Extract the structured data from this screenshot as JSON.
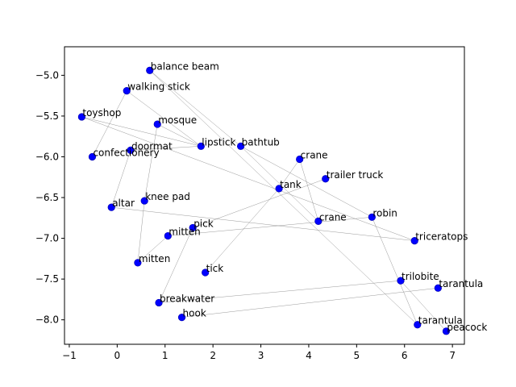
{
  "chart_data": {
    "type": "scatter",
    "title": "",
    "xlabel": "",
    "ylabel": "",
    "xlim": [
      -1.1,
      7.25
    ],
    "ylim": [
      -8.3,
      -4.65
    ],
    "xticks": [
      -1,
      0,
      1,
      2,
      3,
      4,
      5,
      6,
      7
    ],
    "yticks": [
      -8.0,
      -7.5,
      -7.0,
      -6.5,
      -6.0,
      -5.5,
      -5.0
    ],
    "xtick_labels": [
      "−1",
      "0",
      "1",
      "2",
      "3",
      "4",
      "5",
      "6",
      "7"
    ],
    "ytick_labels": [
      "−8.0",
      "−7.5",
      "−7.0",
      "−6.5",
      "−6.0",
      "−5.5",
      "−5.0"
    ],
    "point_color": "#0000ff",
    "edge_color": "#808080",
    "points": [
      {
        "label": "balance beam",
        "x": 0.68,
        "y": -4.94
      },
      {
        "label": "walking stick",
        "x": 0.2,
        "y": -5.19
      },
      {
        "label": "toyshop",
        "x": -0.74,
        "y": -5.51
      },
      {
        "label": "mosque",
        "x": 0.84,
        "y": -5.6
      },
      {
        "label": "doormat",
        "x": 0.28,
        "y": -5.92
      },
      {
        "label": "confectionery",
        "x": -0.52,
        "y": -6.0
      },
      {
        "label": "lipstick",
        "x": 1.75,
        "y": -5.87
      },
      {
        "label": "bathtub",
        "x": 2.58,
        "y": -5.87
      },
      {
        "label": "crane",
        "x": 3.81,
        "y": -6.03
      },
      {
        "label": "trailer truck",
        "x": 4.35,
        "y": -6.27
      },
      {
        "label": "tank",
        "x": 3.38,
        "y": -6.39
      },
      {
        "label": "knee pad",
        "x": 0.57,
        "y": -6.54
      },
      {
        "label": "altar",
        "x": -0.12,
        "y": -6.62
      },
      {
        "label": "crane",
        "x": 4.2,
        "y": -6.79
      },
      {
        "label": "robin",
        "x": 5.32,
        "y": -6.74
      },
      {
        "label": "triceratops",
        "x": 6.21,
        "y": -7.03
      },
      {
        "label": "pick",
        "x": 1.58,
        "y": -6.87
      },
      {
        "label": "mitten",
        "x": 1.06,
        "y": -6.97
      },
      {
        "label": "mitten",
        "x": 0.43,
        "y": -7.3
      },
      {
        "label": "tick",
        "x": 1.84,
        "y": -7.42
      },
      {
        "label": "trilobite",
        "x": 5.92,
        "y": -7.52
      },
      {
        "label": "tarantula",
        "x": 6.7,
        "y": -7.61
      },
      {
        "label": "breakwater",
        "x": 0.87,
        "y": -7.79
      },
      {
        "label": "hook",
        "x": 1.35,
        "y": -7.97
      },
      {
        "label": "tarantula",
        "x": 6.27,
        "y": -8.06
      },
      {
        "label": "peacock",
        "x": 6.87,
        "y": -8.14
      }
    ],
    "edges": [
      [
        0,
        7
      ],
      [
        0,
        24
      ],
      [
        1,
        5
      ],
      [
        1,
        6
      ],
      [
        2,
        6
      ],
      [
        2,
        15
      ],
      [
        3,
        11
      ],
      [
        3,
        6
      ],
      [
        4,
        12
      ],
      [
        4,
        6
      ],
      [
        7,
        14
      ],
      [
        7,
        13
      ],
      [
        8,
        10
      ],
      [
        8,
        13
      ],
      [
        9,
        16
      ],
      [
        10,
        19
      ],
      [
        11,
        18
      ],
      [
        12,
        15
      ],
      [
        14,
        17
      ],
      [
        14,
        24
      ],
      [
        16,
        22
      ],
      [
        20,
        25
      ],
      [
        20,
        22
      ],
      [
        21,
        23
      ],
      [
        17,
        18
      ]
    ]
  }
}
